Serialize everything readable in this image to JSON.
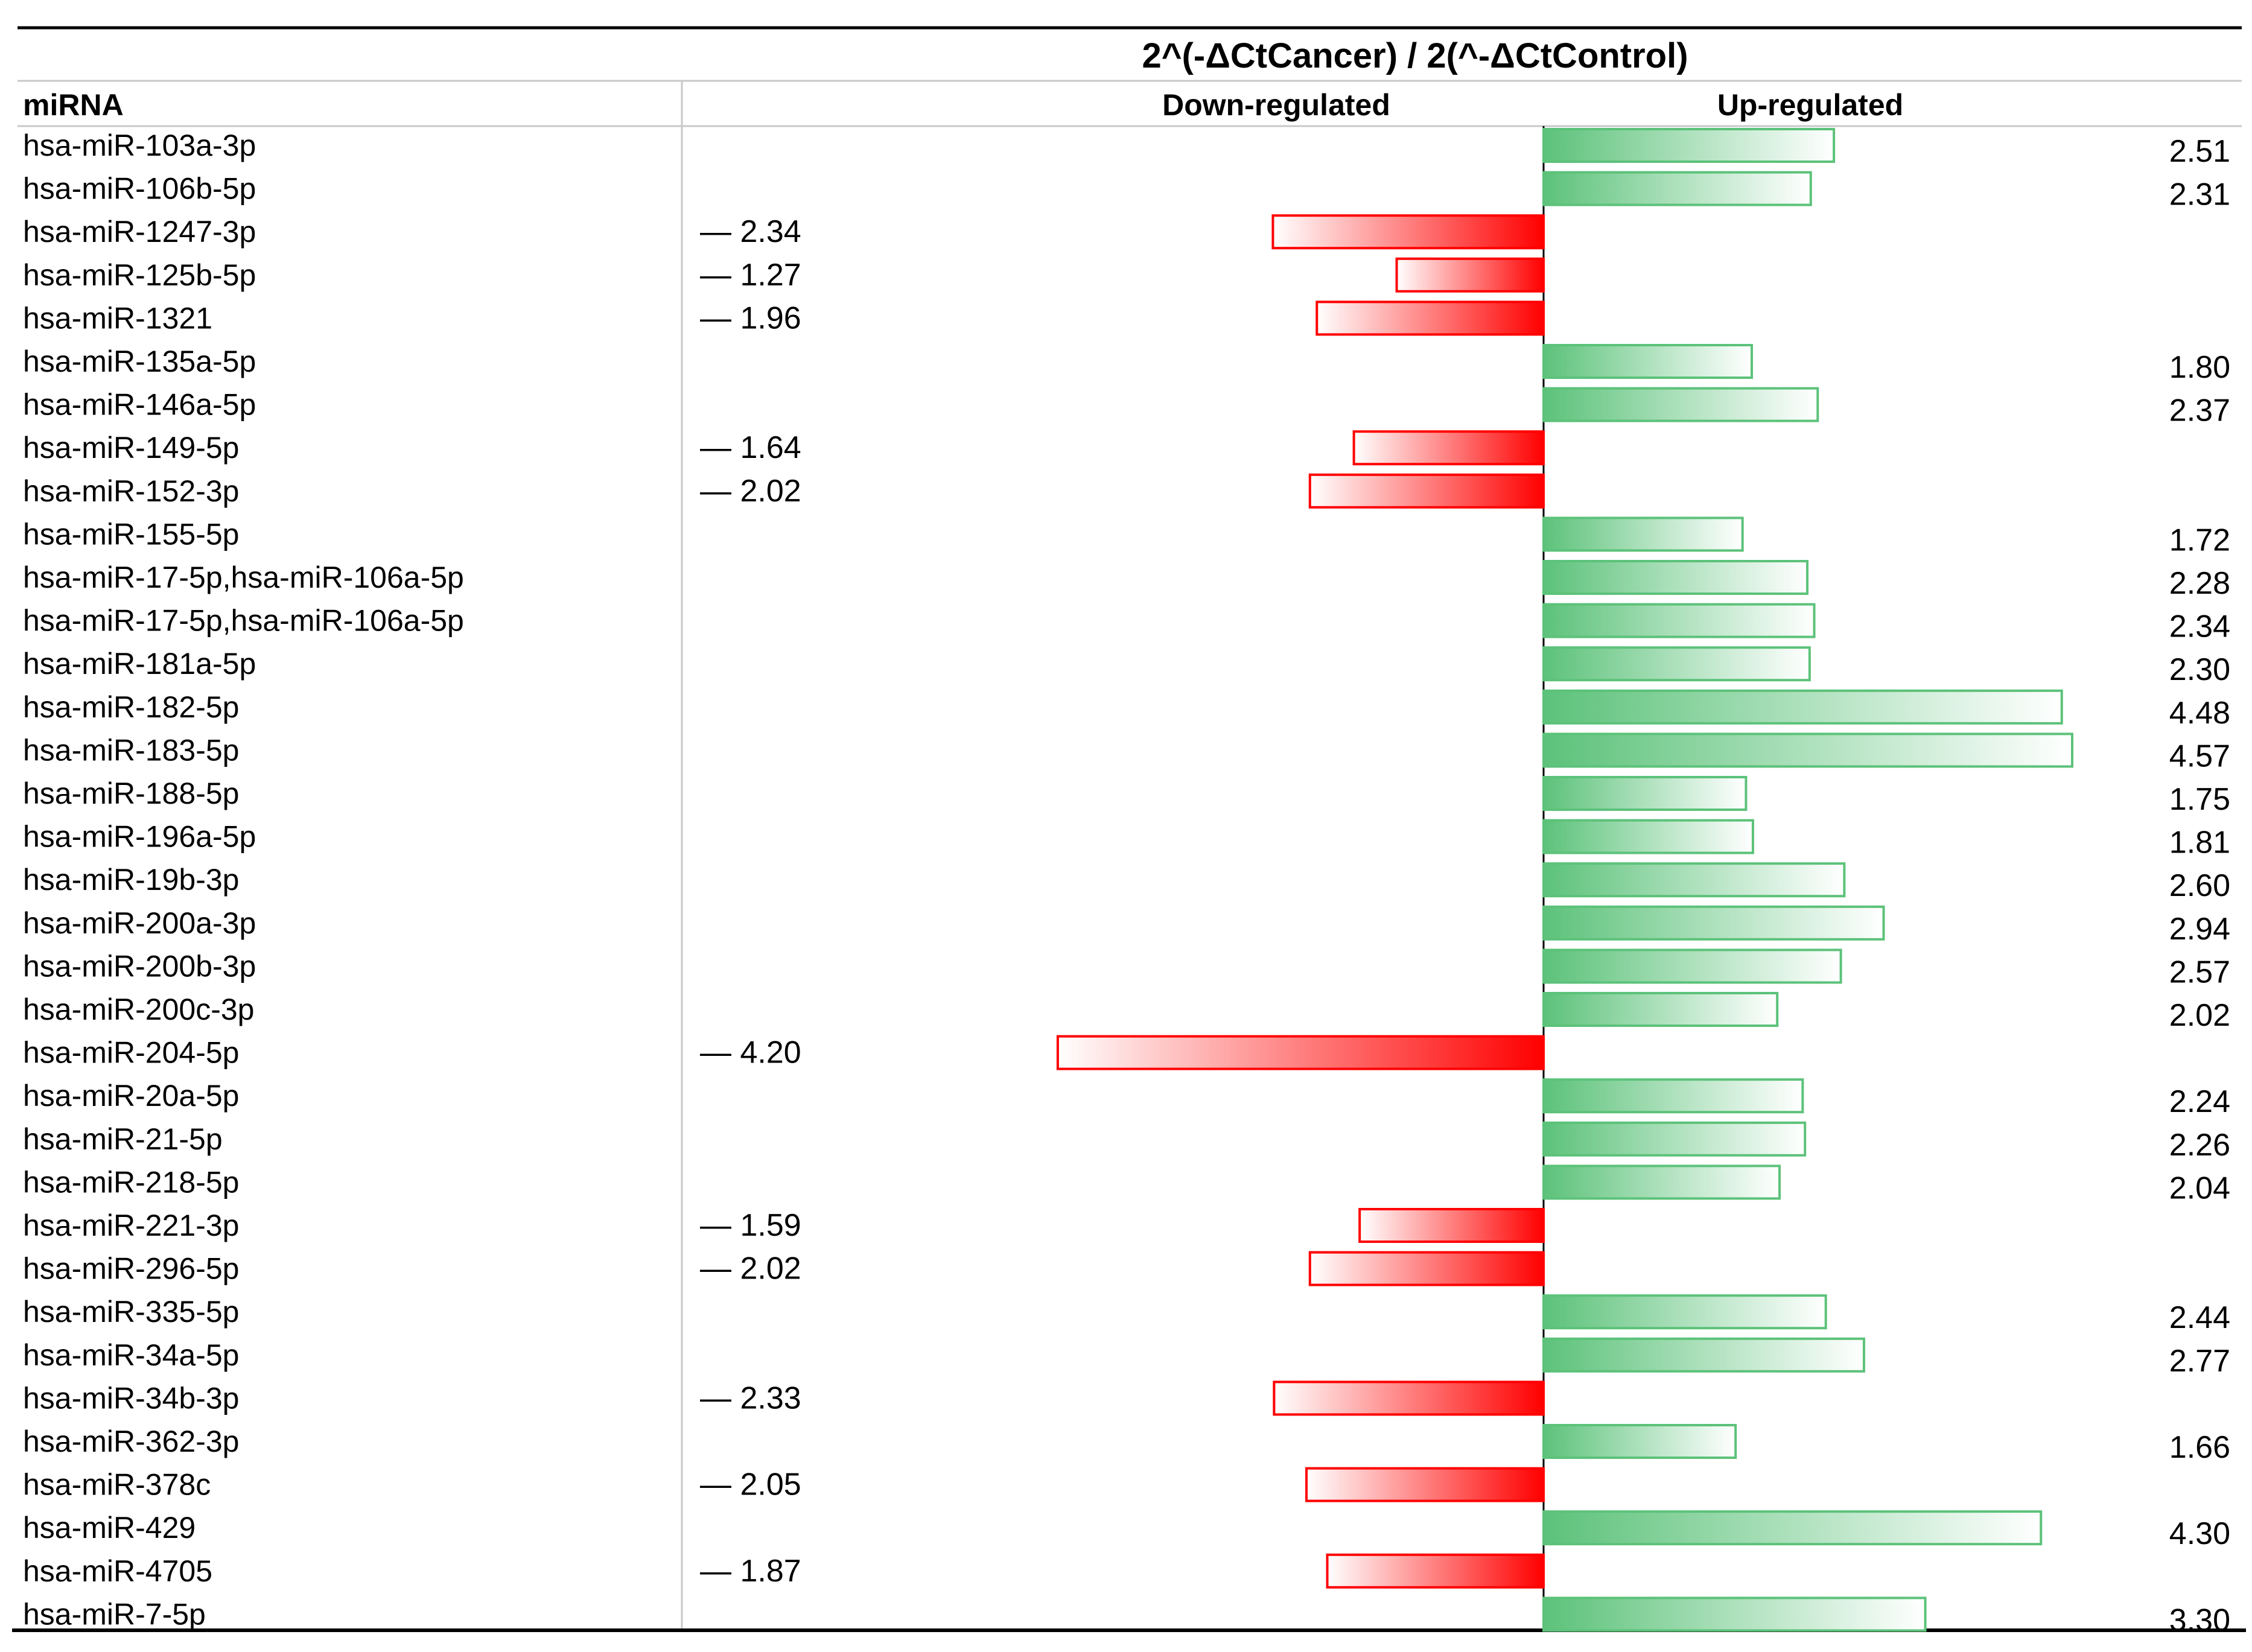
{
  "chart_data": {
    "type": "bar",
    "title": "2^(-ΔCtCancer) / 2(^-ΔCtControl)",
    "column_header": "miRNA",
    "down_label": "Down-regulated",
    "up_label": "Up-regulated",
    "down_prefix": "— ",
    "max_value": 4.57,
    "colors": {
      "down": "#ff0000",
      "up": "#5cc27a"
    },
    "rows": [
      {
        "name": "hsa-miR-103a-3p",
        "direction": "up",
        "value": 2.51,
        "label": "2.51"
      },
      {
        "name": "hsa-miR-106b-5p",
        "direction": "up",
        "value": 2.31,
        "label": "2.31"
      },
      {
        "name": "hsa-miR-1247-3p",
        "direction": "down",
        "value": 2.34,
        "label": "2.34"
      },
      {
        "name": "hsa-miR-125b-5p",
        "direction": "down",
        "value": 1.27,
        "label": "1.27"
      },
      {
        "name": "hsa-miR-1321",
        "direction": "down",
        "value": 1.96,
        "label": "1.96"
      },
      {
        "name": "hsa-miR-135a-5p",
        "direction": "up",
        "value": 1.8,
        "label": "1.80"
      },
      {
        "name": "hsa-miR-146a-5p",
        "direction": "up",
        "value": 2.37,
        "label": "2.37"
      },
      {
        "name": "hsa-miR-149-5p",
        "direction": "down",
        "value": 1.64,
        "label": "1.64"
      },
      {
        "name": "hsa-miR-152-3p",
        "direction": "down",
        "value": 2.02,
        "label": "2.02"
      },
      {
        "name": "hsa-miR-155-5p",
        "direction": "up",
        "value": 1.72,
        "label": "1.72"
      },
      {
        "name": "hsa-miR-17-5p,hsa-miR-106a-5p",
        "direction": "up",
        "value": 2.28,
        "label": "2.28"
      },
      {
        "name": "hsa-miR-17-5p,hsa-miR-106a-5p",
        "direction": "up",
        "value": 2.34,
        "label": "2.34"
      },
      {
        "name": "hsa-miR-181a-5p",
        "direction": "up",
        "value": 2.3,
        "label": "2.30"
      },
      {
        "name": "hsa-miR-182-5p",
        "direction": "up",
        "value": 4.48,
        "label": "4.48"
      },
      {
        "name": "hsa-miR-183-5p",
        "direction": "up",
        "value": 4.57,
        "label": "4.57"
      },
      {
        "name": "hsa-miR-188-5p",
        "direction": "up",
        "value": 1.75,
        "label": "1.75"
      },
      {
        "name": "hsa-miR-196a-5p",
        "direction": "up",
        "value": 1.81,
        "label": "1.81"
      },
      {
        "name": "hsa-miR-19b-3p",
        "direction": "up",
        "value": 2.6,
        "label": "2.60"
      },
      {
        "name": "hsa-miR-200a-3p",
        "direction": "up",
        "value": 2.94,
        "label": "2.94"
      },
      {
        "name": "hsa-miR-200b-3p",
        "direction": "up",
        "value": 2.57,
        "label": "2.57"
      },
      {
        "name": "hsa-miR-200c-3p",
        "direction": "up",
        "value": 2.02,
        "label": "2.02"
      },
      {
        "name": "hsa-miR-204-5p",
        "direction": "down",
        "value": 4.2,
        "label": "4.20"
      },
      {
        "name": "hsa-miR-20a-5p",
        "direction": "up",
        "value": 2.24,
        "label": "2.24"
      },
      {
        "name": "hsa-miR-21-5p",
        "direction": "up",
        "value": 2.26,
        "label": "2.26"
      },
      {
        "name": "hsa-miR-218-5p",
        "direction": "up",
        "value": 2.04,
        "label": "2.04"
      },
      {
        "name": "hsa-miR-221-3p",
        "direction": "down",
        "value": 1.59,
        "label": "1.59"
      },
      {
        "name": "hsa-miR-296-5p",
        "direction": "down",
        "value": 2.02,
        "label": "2.02"
      },
      {
        "name": "hsa-miR-335-5p",
        "direction": "up",
        "value": 2.44,
        "label": "2.44"
      },
      {
        "name": "hsa-miR-34a-5p",
        "direction": "up",
        "value": 2.77,
        "label": "2.77"
      },
      {
        "name": "hsa-miR-34b-3p",
        "direction": "down",
        "value": 2.33,
        "label": "2.33"
      },
      {
        "name": "hsa-miR-362-3p",
        "direction": "up",
        "value": 1.66,
        "label": "1.66"
      },
      {
        "name": "hsa-miR-378c",
        "direction": "down",
        "value": 2.05,
        "label": "2.05"
      },
      {
        "name": "hsa-miR-429",
        "direction": "up",
        "value": 4.3,
        "label": "4.30"
      },
      {
        "name": "hsa-miR-4705",
        "direction": "down",
        "value": 1.87,
        "label": "1.87"
      },
      {
        "name": "hsa-miR-7-5p",
        "direction": "up",
        "value": 3.3,
        "label": "3.30"
      }
    ]
  }
}
